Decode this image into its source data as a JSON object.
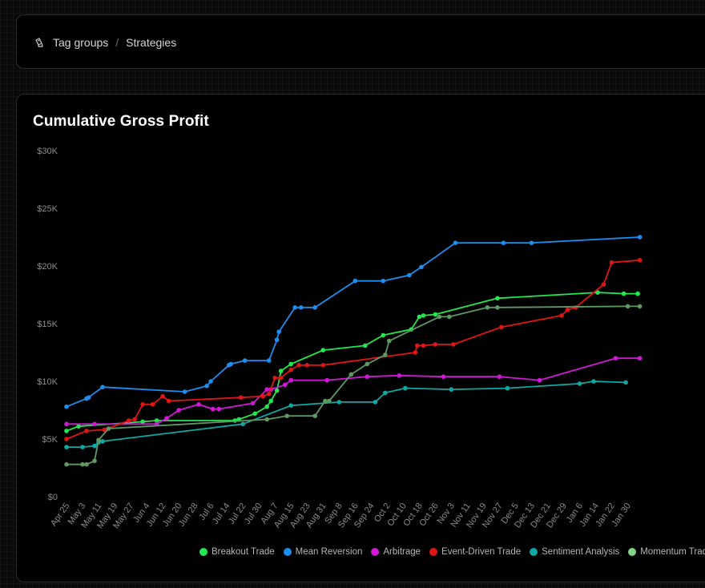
{
  "breadcrumb": {
    "icon": "tag-group-icon",
    "items": [
      "Tag groups",
      "Strategies"
    ],
    "separator": "/"
  },
  "chart_data": {
    "type": "line",
    "title": "Cumulative Gross Profit",
    "xlabel": "",
    "ylabel": "",
    "ylim": [
      0,
      30000
    ],
    "yticks": [
      "$0",
      "$5K",
      "$10K",
      "$15K",
      "$20K",
      "$25K",
      "$30K"
    ],
    "xticks": [
      "Apr 25",
      "May 3",
      "May 11",
      "May 19",
      "May 27",
      "Jun 4",
      "Jun 12",
      "Jun 20",
      "Jun 28",
      "Jul 6",
      "Jul 14",
      "Jul 22",
      "Jul 30",
      "Aug 7",
      "Aug 15",
      "Aug 23",
      "Aug 31",
      "Sep 8",
      "Sep 16",
      "Sep 24",
      "Oct 2",
      "Oct 10",
      "Oct 18",
      "Oct 26",
      "Nov 3",
      "Nov 11",
      "Nov 19",
      "Nov 27",
      "Dec 5",
      "Dec 13",
      "Dec 21",
      "Dec 29",
      "Jan 6",
      "Jan 14",
      "Jan 22",
      "Jan 30"
    ],
    "grid": false,
    "legend": "bottom",
    "series": [
      {
        "name": "Breakout Trade",
        "color": "#22e84f",
        "points": [
          [
            "Apr 25",
            5700
          ],
          [
            "May 1",
            6100
          ],
          [
            "Jun 2",
            6500
          ],
          [
            "Jun 9",
            6600
          ],
          [
            "Jul 18",
            6600
          ],
          [
            "Jul 20",
            6700
          ],
          [
            "Jul 28",
            7200
          ],
          [
            "Aug 3",
            7800
          ],
          [
            "Aug 5",
            8300
          ],
          [
            "Aug 8",
            9200
          ],
          [
            "Aug 10",
            10900
          ],
          [
            "Aug 15",
            11500
          ],
          [
            "Aug 31",
            12700
          ],
          [
            "Sep 21",
            13100
          ],
          [
            "Sep 30",
            14000
          ],
          [
            "Oct 14",
            14500
          ],
          [
            "Oct 18",
            15600
          ],
          [
            "Oct 20",
            15700
          ],
          [
            "Oct 26",
            15800
          ],
          [
            "Nov 26",
            17200
          ],
          [
            "Jan 15",
            17700
          ],
          [
            "Jan 28",
            17600
          ],
          [
            "Feb 4",
            17600
          ]
        ]
      },
      {
        "name": "Mean Reversion",
        "color": "#1d8df0",
        "points": [
          [
            "Apr 25",
            7800
          ],
          [
            "May 5",
            8500
          ],
          [
            "May 6",
            8600
          ],
          [
            "May 13",
            9500
          ],
          [
            "Jun 23",
            9100
          ],
          [
            "Jul 4",
            9600
          ],
          [
            "Jul 6",
            10000
          ],
          [
            "Jul 15",
            11400
          ],
          [
            "Jul 16",
            11500
          ],
          [
            "Jul 23",
            11800
          ],
          [
            "Aug 4",
            11800
          ],
          [
            "Aug 8",
            13600
          ],
          [
            "Aug 9",
            14300
          ],
          [
            "Aug 17",
            16400
          ],
          [
            "Aug 20",
            16400
          ],
          [
            "Aug 27",
            16400
          ],
          [
            "Sep 16",
            18700
          ],
          [
            "Sep 30",
            18700
          ],
          [
            "Oct 13",
            19200
          ],
          [
            "Oct 19",
            19900
          ],
          [
            "Nov 5",
            22000
          ],
          [
            "Nov 29",
            22000
          ],
          [
            "Dec 13",
            22000
          ],
          [
            "Feb 5",
            22500
          ]
        ]
      },
      {
        "name": "Arbitrage",
        "color": "#d118d6",
        "points": [
          [
            "Apr 25",
            6300
          ],
          [
            "May 9",
            6300
          ],
          [
            "Jun 9",
            6300
          ],
          [
            "Jun 14",
            6800
          ],
          [
            "Jun 20",
            7500
          ],
          [
            "Jun 30",
            8000
          ],
          [
            "Jul 7",
            7600
          ],
          [
            "Jul 10",
            7600
          ],
          [
            "Jul 27",
            8100
          ],
          [
            "Aug 3",
            9300
          ],
          [
            "Aug 5",
            9300
          ],
          [
            "Aug 12",
            9700
          ],
          [
            "Aug 15",
            10100
          ],
          [
            "Sep 2",
            10100
          ],
          [
            "Sep 22",
            10400
          ],
          [
            "Oct 8",
            10500
          ],
          [
            "Oct 30",
            10400
          ],
          [
            "Nov 27",
            10400
          ],
          [
            "Dec 17",
            10100
          ],
          [
            "Jan 24",
            12000
          ],
          [
            "Feb 5",
            12000
          ]
        ]
      },
      {
        "name": "Event-Driven Trade",
        "color": "#e01515",
        "points": [
          [
            "Apr 25",
            5000
          ],
          [
            "May 5",
            5700
          ],
          [
            "May 14",
            5800
          ],
          [
            "May 26",
            6600
          ],
          [
            "May 29",
            6700
          ],
          [
            "Jun 2",
            8000
          ],
          [
            "Jun 7",
            8000
          ],
          [
            "Jun 12",
            8700
          ],
          [
            "Jun 15",
            8300
          ],
          [
            "Jul 21",
            8600
          ],
          [
            "Aug 1",
            8700
          ],
          [
            "Aug 4",
            8900
          ],
          [
            "Aug 7",
            10300
          ],
          [
            "Aug 10",
            10300
          ],
          [
            "Aug 15",
            11000
          ],
          [
            "Aug 19",
            11400
          ],
          [
            "Aug 23",
            11400
          ],
          [
            "Aug 31",
            11400
          ],
          [
            "Oct 16",
            12500
          ],
          [
            "Oct 17",
            13100
          ],
          [
            "Oct 20",
            13100
          ],
          [
            "Oct 26",
            13200
          ],
          [
            "Nov 4",
            13200
          ],
          [
            "Nov 28",
            14700
          ],
          [
            "Dec 28",
            15700
          ],
          [
            "Dec 31",
            16200
          ],
          [
            "Jan 4",
            16400
          ],
          [
            "Jan 18",
            18400
          ],
          [
            "Jan 22",
            20300
          ],
          [
            "Feb 5",
            20500
          ]
        ]
      },
      {
        "name": "Sentiment Analysis",
        "color": "#0fa8a3",
        "points": [
          [
            "Apr 25",
            4300
          ],
          [
            "May 3",
            4300
          ],
          [
            "May 9",
            4400
          ],
          [
            "May 11",
            4700
          ],
          [
            "May 13",
            4800
          ],
          [
            "Jul 22",
            6300
          ],
          [
            "Aug 15",
            7900
          ],
          [
            "Sep 8",
            8200
          ],
          [
            "Sep 26",
            8200
          ],
          [
            "Oct 1",
            9000
          ],
          [
            "Oct 11",
            9400
          ],
          [
            "Nov 3",
            9300
          ],
          [
            "Dec 1",
            9400
          ],
          [
            "Jan 6",
            9800
          ],
          [
            "Jan 13",
            10000
          ],
          [
            "Jan 29",
            9900
          ]
        ]
      },
      {
        "name": "Momentum Trade",
        "color": "#5e9863",
        "points": [
          [
            "Apr 25",
            2800
          ],
          [
            "May 3",
            2800
          ],
          [
            "May 5",
            2800
          ],
          [
            "May 9",
            3100
          ],
          [
            "May 11",
            4900
          ],
          [
            "May 16",
            5900
          ],
          [
            "Aug 3",
            6700
          ],
          [
            "Aug 13",
            7000
          ],
          [
            "Aug 27",
            7000
          ],
          [
            "Sep 1",
            8300
          ],
          [
            "Sep 3",
            8300
          ],
          [
            "Sep 14",
            10600
          ],
          [
            "Sep 22",
            11500
          ],
          [
            "Oct 1",
            12300
          ],
          [
            "Oct 3",
            13500
          ],
          [
            "Oct 28",
            15600
          ],
          [
            "Nov 2",
            15600
          ],
          [
            "Nov 21",
            16400
          ],
          [
            "Nov 26",
            16400
          ],
          [
            "Jan 30",
            16500
          ],
          [
            "Feb 5",
            16500
          ]
        ]
      }
    ]
  }
}
